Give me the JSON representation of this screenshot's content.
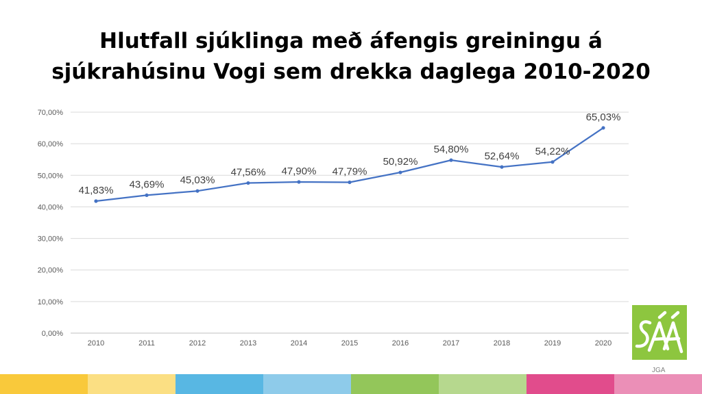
{
  "slide": {
    "title_line1": "Hlutfall sjúklinga með áfengis greiningu á",
    "title_line2": "sjúkrahúsinu Vogi sem drekka daglega 2010-2020",
    "credit": "JGA",
    "logo_text": "SÁÁ",
    "logo_color": "#8dc63f",
    "bottom_bar_colors": [
      "#f9c93b",
      "#fbdf83",
      "#58b7e3",
      "#8ecbea",
      "#93c65a",
      "#b6d88e",
      "#e14c8c",
      "#eb8fb7"
    ]
  },
  "chart_data": {
    "type": "line",
    "title": "",
    "xlabel": "",
    "ylabel": "",
    "categories": [
      "2010",
      "2011",
      "2012",
      "2013",
      "2014",
      "2015",
      "2016",
      "2017",
      "2018",
      "2019",
      "2020"
    ],
    "values": [
      41.83,
      43.69,
      45.03,
      47.56,
      47.9,
      47.79,
      50.92,
      54.8,
      52.64,
      54.22,
      65.03
    ],
    "value_labels": [
      "41,83%",
      "43,69%",
      "45,03%",
      "47,56%",
      "47,90%",
      "47,79%",
      "50,92%",
      "54,80%",
      "52,64%",
      "54,22%",
      "65,03%"
    ],
    "ylim": [
      0,
      70
    ],
    "yticks": [
      0,
      10,
      20,
      30,
      40,
      50,
      60,
      70
    ],
    "ytick_labels": [
      "0,00%",
      "10,00%",
      "20,00%",
      "30,00%",
      "40,00%",
      "50,00%",
      "60,00%",
      "70,00%"
    ],
    "grid": true,
    "legend": "none",
    "line_color": "#4472c4"
  }
}
